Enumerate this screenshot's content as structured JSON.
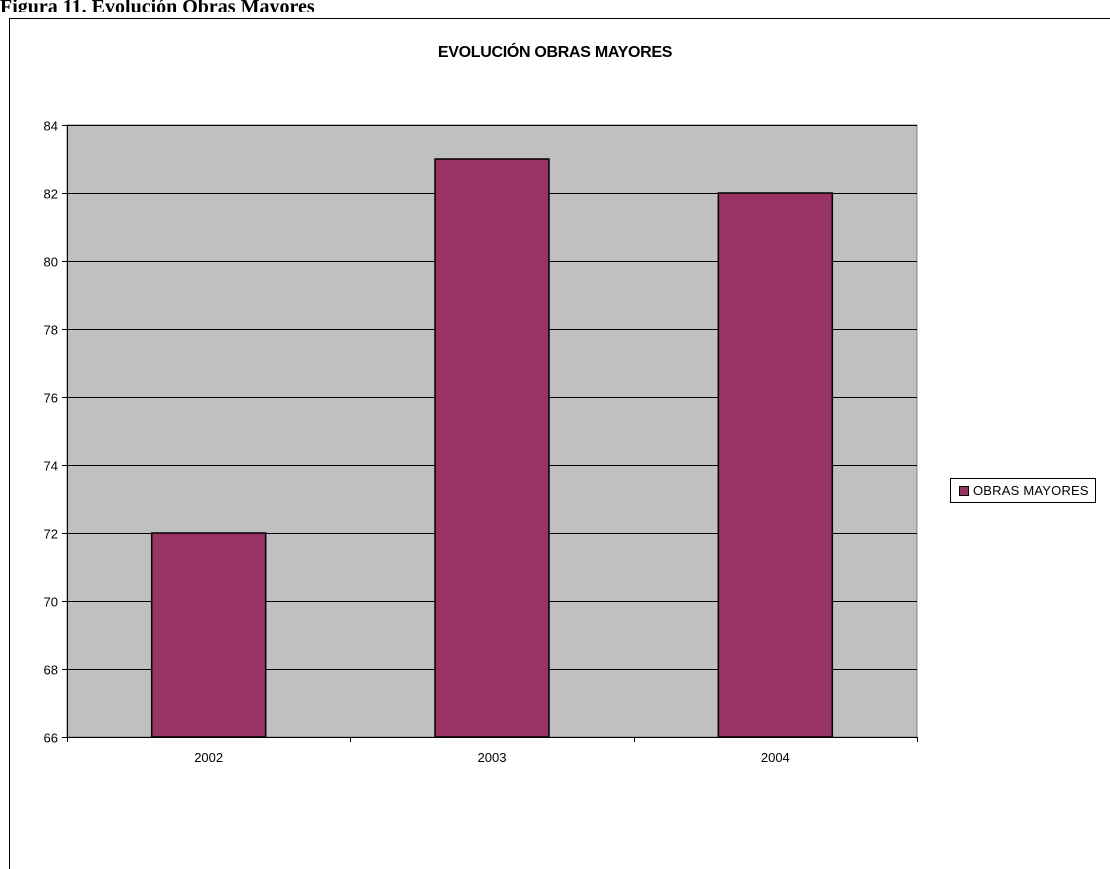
{
  "document": {
    "heading": "Figura 11. Evolución Obras Mayores"
  },
  "colors": {
    "bar_fill": "#993366",
    "plot_background": "#c0c0c0",
    "gridline": "#000000"
  },
  "chart_data": {
    "type": "bar",
    "title": "EVOLUCIÓN OBRAS MAYORES",
    "xlabel": "",
    "ylabel": "",
    "categories": [
      "2002",
      "2003",
      "2004"
    ],
    "series": [
      {
        "name": "OBRAS MAYORES",
        "values": [
          72,
          83,
          82
        ]
      }
    ],
    "ylim": [
      66,
      84
    ],
    "ytick_step": 2,
    "grid": true,
    "legend_position": "right"
  }
}
